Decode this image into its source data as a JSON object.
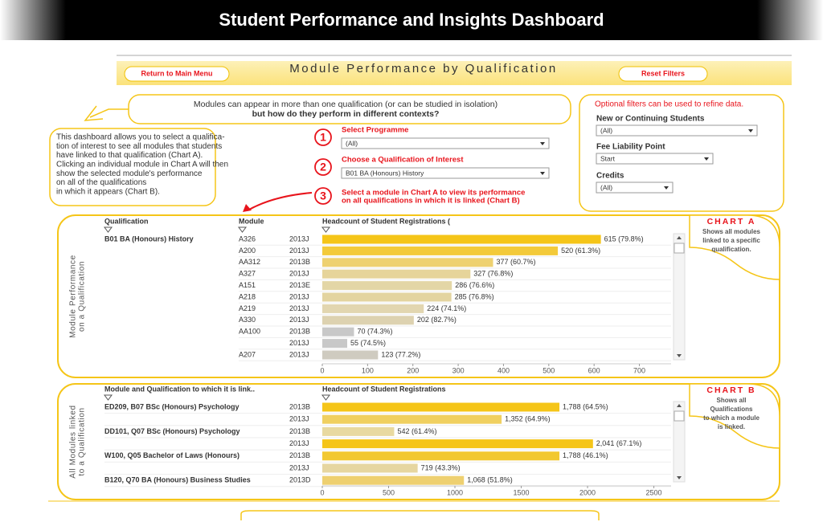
{
  "header": {
    "title": "Student Performance and Insights Dashboard"
  },
  "banner": {
    "title": "Module Performance by Qualification",
    "buttons": [
      "Return to Main Menu",
      "Reset Filters"
    ]
  },
  "intro": [
    "Modules can appear in more than one qualification (or can be studied in isolation)",
    "but how do they perform in different contexts?"
  ],
  "description": [
    "This dashboard allows you to select a qualifica-",
    "tion of interest to see all modules that students",
    "have linked to that qualification (Chart A).",
    "Clicking an individual module in Chart A will then",
    "show the selected module's performance",
    "on all of the qualifications",
    "in which it appears (Chart B)."
  ],
  "steps": [
    {
      "number": "1",
      "label": [
        "Select Programme"
      ],
      "control": "(All)"
    },
    {
      "number": "2",
      "label": [
        "Choose a Qualification of Interest"
      ],
      "control": "B01 BA (Honours) History"
    },
    {
      "number": "3",
      "label": [
        "Select a module in Chart A to view its performance",
        "on all qualifications in which it is linked (Chart B)"
      ]
    }
  ],
  "filters": {
    "note": "Optional filters can be used to refine data.",
    "items": [
      {
        "label": "New or Continuing Students",
        "value": "(All)"
      },
      {
        "label": "Fee Liability Point",
        "value": "Start"
      },
      {
        "label": "Credits",
        "value": "(All)"
      }
    ]
  },
  "chart_data": [
    {
      "type": "bar",
      "panel_label": [
        "Module Performance",
        "on a Qualification"
      ],
      "badge": "CHART A",
      "badge_text": [
        "Shows all modules",
        "linked to a specific",
        "qualification."
      ],
      "column_headers": [
        "Qualification",
        "Module",
        "Headcount of Student Registrations ("
      ],
      "qualification": "B01 BA (Honours) History",
      "categories": [
        "A326",
        "A200",
        "AA312",
        "A327",
        "A151",
        "A218",
        "A219",
        "A330",
        "AA100",
        null,
        "A207"
      ],
      "presentations": [
        "2013J",
        "2013J",
        "2013B",
        "2013J",
        "2013E",
        "2013J",
        "2013J",
        "2013J",
        "2013B",
        "2013J",
        "2013J"
      ],
      "values": [
        615,
        520,
        377,
        327,
        286,
        285,
        224,
        202,
        70,
        55,
        123
      ],
      "value_labels": [
        "615 (79.8%)",
        "520 (61.3%)",
        "377 (60.7%)",
        "327 (76.8%)",
        "286 (76.6%)",
        "285 (76.8%)",
        "224 (74.1%)",
        "202 (82.7%)",
        "70 (74.3%)",
        "55 (74.5%)",
        "123 (77.2%)"
      ],
      "colors": [
        "#f5c518",
        "#f3ca3a",
        "#eed170",
        "#e6d49a",
        "#e3d6a6",
        "#e3d4a0",
        "#e2d6b0",
        "#ddd2b0",
        "#c8c8c8",
        "#c8c8c8",
        "#cfcbc0"
      ],
      "xlim": [
        0,
        770
      ],
      "xticks": [
        0,
        100,
        200,
        300,
        400,
        500,
        600,
        700
      ]
    },
    {
      "type": "bar",
      "panel_label": [
        "All Modules linked",
        "to a Qualification"
      ],
      "badge": "CHART B",
      "badge_text": [
        "Shows all",
        "Qualifications",
        "to which a module",
        "is linked."
      ],
      "column_headers": [
        "Module and Qualification to which it is link..",
        "Headcount of Student Registrations"
      ],
      "categories": [
        "ED209, B07 BSc (Honours) Psychology",
        null,
        "DD101, Q07 BSc (Honours) Psychology",
        null,
        "W100, Q05 Bachelor of Laws (Honours)",
        null,
        "B120, Q70 BA (Honours) Business Studies"
      ],
      "presentations": [
        "2013B",
        "2013J",
        "2013B",
        "2013J",
        "2013B",
        "2013J",
        "2013D"
      ],
      "values": [
        1788,
        1352,
        542,
        2041,
        1788,
        719,
        1068
      ],
      "value_labels": [
        "1,788  (64.5%)",
        "1,352  (64.9%)",
        "542  (61.4%)",
        "2,041  (67.1%)",
        "1,788  (46.1%)",
        "719  (43.3%)",
        "1,068  (51.8%)"
      ],
      "colors": [
        "#f5c518",
        "#f0d060",
        "#e8d9a0",
        "#f5c518",
        "#f2c830",
        "#e6d6a0",
        "#eed070"
      ],
      "xlim": [
        0,
        2630
      ],
      "xticks": [
        0,
        500,
        1000,
        1500,
        2000,
        2500
      ]
    }
  ]
}
